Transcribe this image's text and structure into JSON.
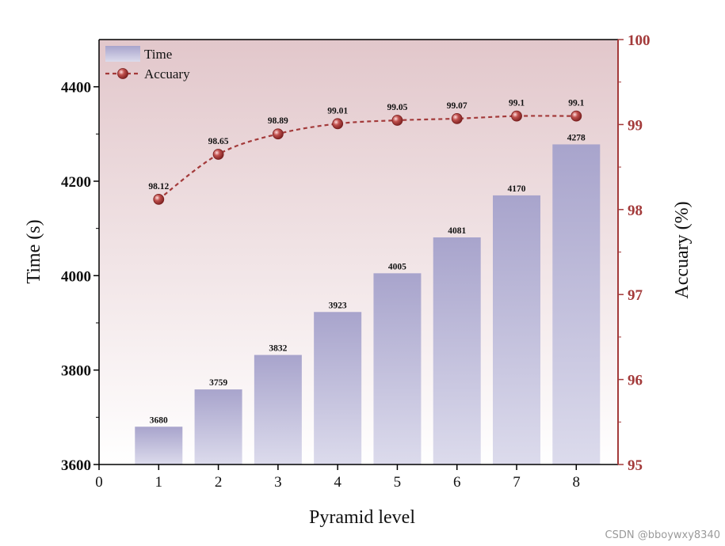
{
  "chart_data": {
    "type": "bar+line",
    "x_ticks": [
      "0",
      "1",
      "2",
      "3",
      "4",
      "5",
      "6",
      "7",
      "8"
    ],
    "categories": [
      1,
      2,
      3,
      4,
      5,
      6,
      7,
      8
    ],
    "series": [
      {
        "name": "Time",
        "type": "bar",
        "axis": "left",
        "values": [
          3680,
          3759,
          3832,
          3923,
          4005,
          4081,
          4170,
          4278
        ],
        "labels": [
          "3680",
          "3759",
          "3832",
          "3923",
          "4005",
          "4081",
          "4170",
          "4278"
        ]
      },
      {
        "name": "Accuary",
        "type": "line",
        "axis": "right",
        "values": [
          98.12,
          98.65,
          98.89,
          99.01,
          99.05,
          99.07,
          99.1,
          99.1
        ],
        "labels": [
          "98.12",
          "98.65",
          "98.89",
          "99.01",
          "99.05",
          "99.07",
          "99.1",
          "99.1"
        ]
      }
    ],
    "xlabel": "Pyramid level",
    "ylabel_left": "Time (s)",
    "ylabel_right": "Accuary (%)",
    "xlim": [
      0,
      8.7
    ],
    "ylim_left": [
      3600,
      4500
    ],
    "ylim_right": [
      95,
      100
    ],
    "yticks_left": [
      "3600",
      "3800",
      "4000",
      "4200",
      "4400"
    ],
    "yticks_right": [
      "95",
      "96",
      "97",
      "98",
      "99",
      "100"
    ],
    "legend_position": "top-left",
    "grid": false,
    "colors": {
      "bar_top": "#a8a4cc",
      "bar_bottom": "#dcdbec",
      "line": "#a33a3a",
      "right_axis": "#a33a3a",
      "bg_top": "#e2c7cb",
      "bg_bottom": "#ffffff"
    }
  },
  "watermark": "CSDN @bboywxy8340"
}
